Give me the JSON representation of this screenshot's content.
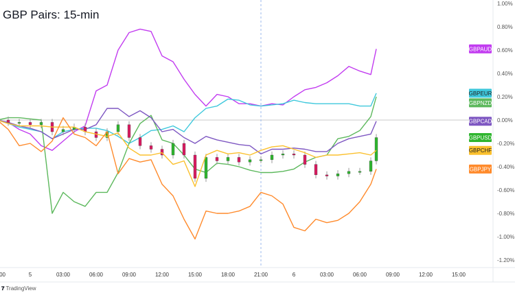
{
  "title": "GBP Pairs: 15-min",
  "footer": {
    "brand": "TradingView",
    "logo_text": "17"
  },
  "chart_data": {
    "type": "line",
    "title": "GBP Pairs: 15-min",
    "y_axis": {
      "unit": "%",
      "range": [
        -1.2,
        1.0
      ],
      "ticks": [
        "1.00%",
        "0.80%",
        "0.60%",
        "0.40%",
        "0.20%",
        "0.00%",
        "-0.20%",
        "-0.40%",
        "-0.60%",
        "-0.80%",
        "-1.00%",
        "-1.20%"
      ],
      "tick_values": [
        1.0,
        0.8,
        0.6,
        0.4,
        0.2,
        0.0,
        -0.2,
        -0.4,
        -0.6,
        -0.8,
        -1.0,
        -1.2
      ],
      "position": "right"
    },
    "x_axis": {
      "ticks": [
        {
          "label": "00",
          "time": "4 21:00"
        },
        {
          "label": "5",
          "time": "5 00:00"
        },
        {
          "label": "03:00",
          "time": "5 03:00"
        },
        {
          "label": "06:00",
          "time": "5 06:00"
        },
        {
          "label": "09:00",
          "time": "5 09:00"
        },
        {
          "label": "12:00",
          "time": "5 12:00"
        },
        {
          "label": "15:00",
          "time": "5 15:00"
        },
        {
          "label": "18:00",
          "time": "5 18:00"
        },
        {
          "label": "21:00",
          "time": "5 21:00"
        },
        {
          "label": "6",
          "time": "6 00:00"
        },
        {
          "label": "03:00",
          "time": "6 03:00"
        },
        {
          "label": "06:00",
          "time": "6 06:00"
        },
        {
          "label": "09:00",
          "time": "6 09:00"
        },
        {
          "label": "12:00",
          "time": "6 12:00"
        },
        {
          "label": "15:00",
          "time": "6 15:00"
        }
      ],
      "marker": "5 21:00"
    },
    "x": [
      "4 21:00",
      "4 22:00",
      "4 23:00",
      "5 00:00",
      "5 01:00",
      "5 02:00",
      "5 03:00",
      "5 04:00",
      "5 05:00",
      "5 06:00",
      "5 07:00",
      "5 08:00",
      "5 09:00",
      "5 10:00",
      "5 11:00",
      "5 12:00",
      "5 13:00",
      "5 14:00",
      "5 15:00",
      "5 16:00",
      "5 17:00",
      "5 18:00",
      "5 19:00",
      "5 20:00",
      "5 21:00",
      "5 22:00",
      "5 23:00",
      "6 00:00",
      "6 01:00",
      "6 02:00",
      "6 03:00",
      "6 04:00",
      "6 05:00",
      "6 06:00",
      "6 07:00",
      "6 07:30"
    ],
    "series": [
      {
        "name": "GBPAUD",
        "color": "#c23cf0",
        "style": "line",
        "values": [
          0,
          -0.02,
          -0.08,
          -0.12,
          -0.22,
          -0.26,
          -0.18,
          -0.1,
          -0.05,
          0.25,
          0.3,
          0.6,
          0.75,
          0.78,
          0.76,
          0.55,
          0.5,
          0.35,
          0.22,
          0.12,
          0.22,
          0.2,
          0.14,
          0.14,
          0.12,
          0.14,
          0.13,
          0.2,
          0.26,
          0.28,
          0.32,
          0.38,
          0.46,
          0.42,
          0.39,
          0.61
        ]
      },
      {
        "name": "GBPEUR",
        "color": "#3ec8dc",
        "style": "line",
        "values": [
          0,
          -0.03,
          -0.06,
          -0.08,
          -0.1,
          -0.16,
          -0.1,
          -0.08,
          -0.07,
          -0.07,
          -0.09,
          -0.14,
          -0.2,
          -0.15,
          -0.09,
          -0.08,
          -0.05,
          -0.1,
          0.02,
          0.1,
          0.12,
          0.18,
          0.17,
          0.13,
          0.12,
          0.13,
          0.14,
          0.17,
          0.15,
          0.14,
          0.14,
          0.14,
          0.14,
          0.12,
          0.12,
          0.23
        ]
      },
      {
        "name": "GBPNZD",
        "color": "#5cb85c",
        "style": "line",
        "values": [
          0,
          0.02,
          0.02,
          0.01,
          0.0,
          -0.8,
          -0.62,
          -0.7,
          -0.74,
          -0.62,
          -0.62,
          -0.45,
          -0.2,
          -0.03,
          0.04,
          -0.17,
          -0.2,
          -0.3,
          -0.42,
          -0.45,
          -0.37,
          -0.38,
          -0.4,
          -0.43,
          -0.45,
          -0.45,
          -0.44,
          -0.42,
          -0.36,
          -0.32,
          -0.3,
          -0.16,
          -0.14,
          -0.09,
          0.03,
          0.2
        ]
      },
      {
        "name": "GBPCAD",
        "color": "#7e57c2",
        "style": "line",
        "values": [
          0,
          -0.02,
          -0.05,
          -0.07,
          -0.1,
          -0.16,
          -0.12,
          -0.08,
          -0.08,
          -0.04,
          0.1,
          0.1,
          0.03,
          0.08,
          0.02,
          -0.1,
          -0.08,
          -0.15,
          -0.2,
          -0.14,
          -0.17,
          -0.19,
          -0.21,
          -0.22,
          -0.29,
          -0.25,
          -0.25,
          -0.24,
          -0.25,
          -0.27,
          -0.27,
          -0.2,
          -0.16,
          -0.14,
          -0.12,
          -0.01
        ]
      },
      {
        "name": "GBPUSD",
        "color": "#2fb52f",
        "style": "candles",
        "up_color": "#2fb52f",
        "down_color": "#d81b60",
        "values": [
          0,
          -0.02,
          -0.02,
          -0.04,
          -0.02,
          -0.1,
          -0.08,
          -0.06,
          -0.1,
          -0.15,
          -0.1,
          -0.04,
          -0.15,
          -0.22,
          -0.25,
          -0.3,
          -0.2,
          -0.3,
          -0.5,
          -0.32,
          -0.35,
          -0.32,
          -0.36,
          -0.34,
          -0.34,
          -0.3,
          -0.29,
          -0.3,
          -0.38,
          -0.47,
          -0.48,
          -0.46,
          -0.44,
          -0.44,
          -0.35,
          -0.15
        ]
      },
      {
        "name": "GBPCHF",
        "color": "#fbc02d",
        "style": "line",
        "values": [
          0,
          -0.03,
          -0.05,
          -0.05,
          -0.05,
          -0.06,
          -0.06,
          -0.06,
          -0.1,
          -0.12,
          -0.14,
          -0.11,
          -0.24,
          -0.3,
          -0.3,
          -0.28,
          -0.38,
          -0.35,
          -0.57,
          -0.3,
          -0.26,
          -0.29,
          -0.28,
          -0.3,
          -0.26,
          -0.23,
          -0.22,
          -0.25,
          -0.28,
          -0.32,
          -0.3,
          -0.3,
          -0.29,
          -0.28,
          -0.3,
          -0.26
        ]
      },
      {
        "name": "GBPJPY",
        "color": "#ff8a2b",
        "style": "line",
        "values": [
          0,
          -0.08,
          -0.22,
          -0.2,
          -0.27,
          -0.18,
          0.02,
          -0.12,
          -0.15,
          -0.22,
          -0.1,
          -0.46,
          -0.33,
          -0.36,
          -0.34,
          -0.55,
          -0.65,
          -0.85,
          -1.02,
          -0.78,
          -0.8,
          -0.8,
          -0.78,
          -0.74,
          -0.62,
          -0.65,
          -0.72,
          -0.92,
          -0.95,
          -0.85,
          -0.88,
          -0.86,
          -0.8,
          -0.7,
          -0.55,
          -0.42
        ]
      }
    ],
    "legend": {
      "placement": "right, at series end values",
      "labels": [
        "GBPAUD",
        "GBPEUR",
        "GBPNZD",
        "GBPCAD",
        "GBPUSD",
        "GBPCHF",
        "GBPJPY"
      ]
    },
    "grid": false
  }
}
